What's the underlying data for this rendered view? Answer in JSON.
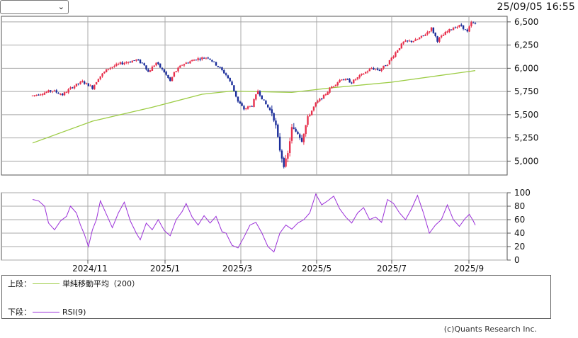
{
  "header": {
    "timestamp": "25/09/05 16:55",
    "period_select_value": ""
  },
  "icons": {
    "select_chevron": "chevron-down-icon"
  },
  "legend": {
    "upper_label": "上段：",
    "upper_series": "単純移動平均（200）",
    "lower_label": "下段：",
    "lower_series": "RSI(9)"
  },
  "footer": {
    "copyright": "(c)Quants Research Inc."
  },
  "colors": {
    "up": "#e8314d",
    "down": "#1a2d9a",
    "ma": "#9ccc44",
    "rsi": "#9b30d9",
    "grid": "#a8a8a8",
    "frame": "#555555"
  },
  "chart_data": [
    {
      "type": "candlestick",
      "y_ticks": [
        "6,500",
        "6,250",
        "6,000",
        "5,750",
        "5,500",
        "5,250",
        "5,000"
      ],
      "y_tick_values": [
        6500,
        6250,
        6000,
        5750,
        5500,
        5250,
        5000
      ],
      "ylim": [
        4850,
        6560
      ],
      "x_tick_labels": [
        "2024/11",
        "2025/1",
        "2025/3",
        "2025/5",
        "2025/7",
        "2025/9"
      ],
      "price_path": [
        [
          0,
          5705
        ],
        [
          10,
          5760
        ],
        [
          15,
          5715
        ],
        [
          20,
          5800
        ],
        [
          25,
          5855
        ],
        [
          28,
          5820
        ],
        [
          30,
          5790
        ],
        [
          33,
          5895
        ],
        [
          38,
          6000
        ],
        [
          44,
          6050
        ],
        [
          52,
          6090
        ],
        [
          56,
          6040
        ],
        [
          58,
          5960
        ],
        [
          62,
          6060
        ],
        [
          66,
          5960
        ],
        [
          69,
          5860
        ],
        [
          71,
          5950
        ],
        [
          75,
          6040
        ],
        [
          82,
          6100
        ],
        [
          88,
          6120
        ],
        [
          93,
          6020
        ],
        [
          97,
          5930
        ],
        [
          100,
          5820
        ],
        [
          103,
          5640
        ],
        [
          106,
          5560
        ],
        [
          110,
          5600
        ],
        [
          113,
          5760
        ],
        [
          116,
          5640
        ],
        [
          120,
          5520
        ],
        [
          122,
          5380
        ],
        [
          124,
          5120
        ],
        [
          126,
          4950
        ],
        [
          128,
          5080
        ],
        [
          130,
          5360
        ],
        [
          133,
          5300
        ],
        [
          135,
          5220
        ],
        [
          138,
          5470
        ],
        [
          142,
          5620
        ],
        [
          146,
          5700
        ],
        [
          150,
          5800
        ],
        [
          155,
          5890
        ],
        [
          160,
          5850
        ],
        [
          165,
          5930
        ],
        [
          170,
          6000
        ],
        [
          174,
          5980
        ],
        [
          178,
          6050
        ],
        [
          183,
          6200
        ],
        [
          186,
          6280
        ],
        [
          192,
          6300
        ],
        [
          196,
          6350
        ],
        [
          200,
          6430
        ],
        [
          203,
          6300
        ],
        [
          207,
          6380
        ],
        [
          211,
          6440
        ],
        [
          215,
          6460
        ],
        [
          218,
          6390
        ],
        [
          220,
          6490
        ],
        [
          222,
          6480
        ]
      ],
      "series": [
        {
          "name": "単純移動平均（200）",
          "path": [
            [
              0,
              5195
            ],
            [
              30,
              5430
            ],
            [
              60,
              5580
            ],
            [
              85,
              5720
            ],
            [
              100,
              5755
            ],
            [
              130,
              5740
            ],
            [
              150,
              5790
            ],
            [
              180,
              5850
            ],
            [
              222,
              5975
            ]
          ]
        }
      ]
    },
    {
      "type": "line",
      "y_ticks": [
        "100",
        "80",
        "60",
        "40",
        "20",
        "0"
      ],
      "y_tick_values": [
        100,
        80,
        60,
        40,
        20,
        0
      ],
      "ylim": [
        0,
        100
      ],
      "x_tick_labels": [
        "2024/11",
        "2025/1",
        "2025/3",
        "2025/5",
        "2025/7",
        "2025/9"
      ],
      "series": [
        {
          "name": "RSI(9)",
          "path": [
            [
              0,
              90
            ],
            [
              3,
              88
            ],
            [
              6,
              80
            ],
            [
              8,
              55
            ],
            [
              11,
              45
            ],
            [
              14,
              58
            ],
            [
              17,
              65
            ],
            [
              19,
              80
            ],
            [
              22,
              70
            ],
            [
              24,
              52
            ],
            [
              26,
              38
            ],
            [
              28,
              20
            ],
            [
              30,
              45
            ],
            [
              32,
              60
            ],
            [
              34,
              88
            ],
            [
              37,
              68
            ],
            [
              40,
              48
            ],
            [
              43,
              70
            ],
            [
              46,
              86
            ],
            [
              49,
              58
            ],
            [
              52,
              40
            ],
            [
              54,
              30
            ],
            [
              57,
              55
            ],
            [
              60,
              45
            ],
            [
              63,
              60
            ],
            [
              66,
              44
            ],
            [
              69,
              36
            ],
            [
              72,
              60
            ],
            [
              75,
              72
            ],
            [
              77,
              84
            ],
            [
              80,
              64
            ],
            [
              83,
              52
            ],
            [
              86,
              66
            ],
            [
              89,
              55
            ],
            [
              92,
              65
            ],
            [
              95,
              42
            ],
            [
              97,
              40
            ],
            [
              100,
              22
            ],
            [
              103,
              18
            ],
            [
              106,
              34
            ],
            [
              109,
              52
            ],
            [
              112,
              56
            ],
            [
              115,
              40
            ],
            [
              118,
              20
            ],
            [
              121,
              12
            ],
            [
              124,
              40
            ],
            [
              127,
              52
            ],
            [
              130,
              46
            ],
            [
              133,
              55
            ],
            [
              136,
              60
            ],
            [
              139,
              70
            ],
            [
              142,
              98
            ],
            [
              145,
              82
            ],
            [
              148,
              88
            ],
            [
              151,
              95
            ],
            [
              154,
              76
            ],
            [
              157,
              64
            ],
            [
              160,
              55
            ],
            [
              163,
              70
            ],
            [
              166,
              78
            ],
            [
              169,
              60
            ],
            [
              172,
              64
            ],
            [
              175,
              56
            ],
            [
              178,
              90
            ],
            [
              181,
              84
            ],
            [
              184,
              70
            ],
            [
              187,
              60
            ],
            [
              190,
              76
            ],
            [
              193,
              96
            ],
            [
              196,
              70
            ],
            [
              199,
              40
            ],
            [
              202,
              52
            ],
            [
              205,
              60
            ],
            [
              208,
              82
            ],
            [
              211,
              60
            ],
            [
              214,
              50
            ],
            [
              217,
              62
            ],
            [
              219,
              68
            ],
            [
              221,
              58
            ],
            [
              222,
              52
            ]
          ]
        }
      ]
    }
  ]
}
